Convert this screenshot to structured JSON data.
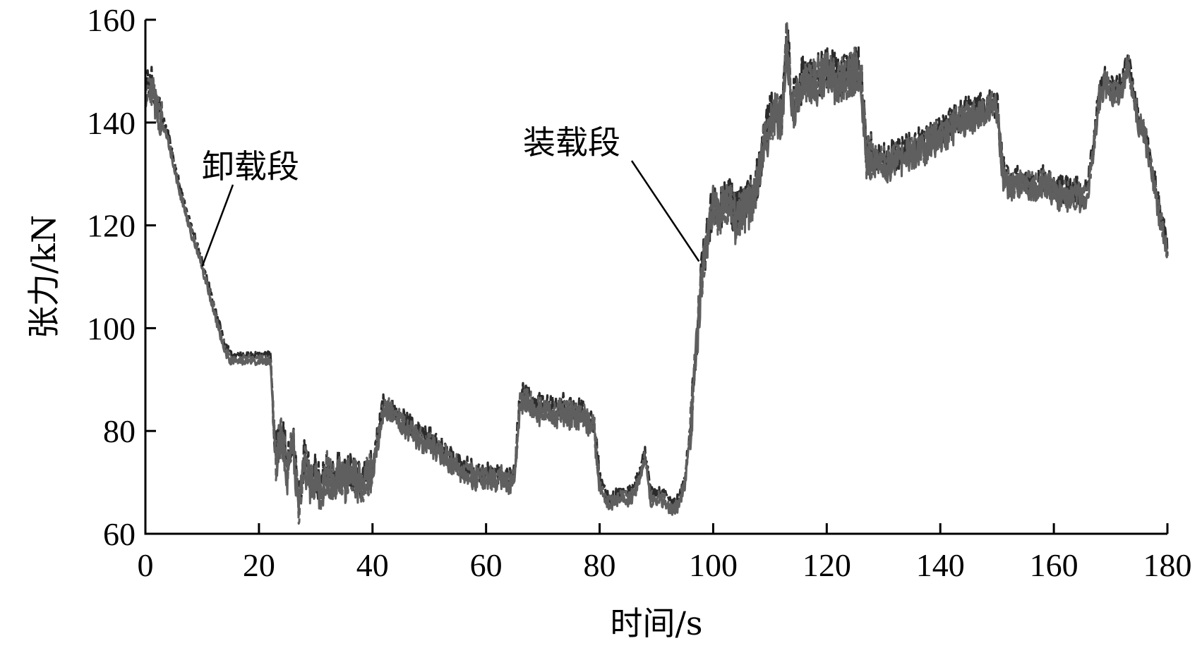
{
  "chart_data": {
    "type": "line",
    "title": "",
    "xlabel": "时间/s",
    "ylabel": "张力/kN",
    "xlim": [
      0,
      180
    ],
    "ylim": [
      60,
      160
    ],
    "xticks": [
      0,
      20,
      40,
      60,
      80,
      100,
      120,
      140,
      160,
      180
    ],
    "yticks": [
      60,
      80,
      100,
      120,
      140,
      160
    ],
    "grid": false,
    "legend": "none",
    "colors": {
      "series_dark": "#2b2b2b",
      "series_light": "#5f5f5f"
    },
    "annotations": [
      {
        "text": "卸载段",
        "x": 10,
        "y": 112
      },
      {
        "text": "装载段",
        "x": 97.5,
        "y": 113
      }
    ],
    "series": [
      {
        "x": [
          0,
          1,
          2,
          3,
          4,
          5,
          6,
          7,
          8,
          9,
          10,
          11,
          12,
          13,
          14,
          15,
          16,
          17,
          18,
          19,
          20,
          21,
          22,
          23,
          24,
          25,
          26,
          27,
          28,
          29,
          30,
          31,
          32,
          33,
          34,
          35,
          36,
          37,
          38,
          39,
          40,
          41,
          42,
          43,
          44,
          45,
          46,
          47,
          48,
          49,
          50,
          51,
          52,
          53,
          54,
          55,
          56,
          57,
          58,
          59,
          60,
          61,
          62,
          63,
          64,
          65,
          66,
          67,
          68,
          69,
          70,
          71,
          72,
          73,
          74,
          75,
          76,
          77,
          78,
          79,
          80,
          81,
          82,
          83,
          84,
          85,
          86,
          87,
          88,
          89,
          90,
          91,
          92,
          93,
          94,
          95,
          96,
          97,
          98,
          99,
          100,
          101,
          102,
          103,
          104,
          105,
          106,
          107,
          108,
          109,
          110,
          111,
          112,
          113,
          114,
          115,
          116,
          117,
          118,
          119,
          120,
          121,
          122,
          123,
          124,
          125,
          126,
          127,
          128,
          129,
          130,
          131,
          132,
          133,
          134,
          135,
          136,
          137,
          138,
          139,
          140,
          141,
          142,
          143,
          144,
          145,
          146,
          147,
          148,
          149,
          150,
          151,
          152,
          153,
          154,
          155,
          156,
          157,
          158,
          159,
          160,
          161,
          162,
          163,
          164,
          165,
          166,
          167,
          168,
          169,
          170,
          171,
          172,
          173,
          174,
          175,
          176,
          177,
          178,
          179,
          180
        ],
        "y": [
          146,
          148,
          143,
          140,
          137,
          132,
          127,
          123,
          119,
          116,
          112,
          108,
          104,
          100,
          96,
          94,
          94,
          94,
          94,
          94,
          94,
          94,
          94,
          74,
          80,
          72,
          79,
          65,
          74,
          70,
          71,
          68,
          72,
          70,
          72,
          70,
          72,
          71,
          69,
          71,
          72,
          79,
          85,
          84,
          83,
          82,
          81,
          80,
          79,
          78,
          78,
          77,
          76,
          75,
          74,
          73,
          72,
          72,
          71,
          71,
          71,
          71,
          71,
          71,
          70,
          71,
          86,
          86,
          85,
          84,
          84,
          84,
          83,
          84,
          84,
          83,
          83,
          83,
          82,
          81,
          70,
          67,
          66,
          67,
          67,
          67,
          68,
          71,
          75,
          67,
          67,
          67,
          66,
          65,
          66,
          70,
          80,
          96,
          110,
          118,
          124,
          122,
          124,
          124,
          121,
          123,
          124,
          125,
          130,
          136,
          140,
          142,
          140,
          156,
          143,
          146,
          148,
          147,
          148,
          149,
          150,
          149,
          148,
          148,
          149,
          150,
          150,
          133,
          133,
          132,
          132,
          132,
          133,
          133,
          134,
          134,
          135,
          135,
          136,
          137,
          137,
          138,
          139,
          140,
          141,
          141,
          141,
          142,
          142,
          143,
          143,
          130,
          128,
          128,
          128,
          128,
          128,
          127,
          128,
          128,
          127,
          126,
          126,
          126,
          126,
          125,
          127,
          135,
          145,
          148,
          146,
          146,
          147,
          152,
          145,
          140,
          138,
          132,
          126,
          120,
          115
        ]
      }
    ]
  }
}
